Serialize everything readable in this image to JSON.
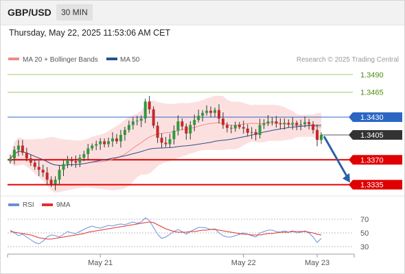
{
  "header": {
    "symbol": "GBP/USD",
    "interval": "30 MIN",
    "timestamp": "Thursday, May 22, 2025 11:53:06 AM CET"
  },
  "colors": {
    "candle_up": "#2f9a3b",
    "candle_down": "#c62828",
    "bollinger_band": "#fcdada",
    "ma20": "#f08a8a",
    "ma50": "#2a4f8a",
    "resistance_line": "#2b66c4",
    "support_line": "#e00000",
    "target_line": "#9bcf6a",
    "target_label": "#4f8a10",
    "current_price_label": "#333333",
    "rsi": "#6a8fd8",
    "rsi_ma": "#e03030",
    "arrow": "#2c5fa8"
  },
  "chart_data": [
    {
      "type": "candlestick",
      "legend": [
        {
          "label": "MA 20 + Bollinger Bands",
          "color": "#f08a8a"
        },
        {
          "label": "MA 50",
          "color": "#2a4f8a"
        }
      ],
      "watermark": "Research © 2025 Trading Central",
      "ylim": [
        1.3325,
        1.351
      ],
      "x_tick_labels": [
        {
          "label": "May 21",
          "index": 22
        },
        {
          "label": "May 22",
          "index": 57
        },
        {
          "label": "May 23",
          "index": 75
        }
      ],
      "levels": [
        {
          "label": "1.3490",
          "value": 1.349,
          "kind": "target",
          "style": "text"
        },
        {
          "label": "1.3465",
          "value": 1.3465,
          "kind": "target",
          "style": "text"
        },
        {
          "label": "1.3430",
          "value": 1.343,
          "kind": "resistance",
          "style": "box"
        },
        {
          "label": "1.3405",
          "value": 1.3405,
          "kind": "current",
          "style": "box"
        },
        {
          "label": "1.3370",
          "value": 1.337,
          "kind": "support",
          "style": "box"
        },
        {
          "label": "1.3335",
          "value": 1.3335,
          "kind": "support",
          "style": "box"
        }
      ],
      "closes": [
        1.3372,
        1.3384,
        1.339,
        1.338,
        1.3372,
        1.3366,
        1.336,
        1.3356,
        1.3352,
        1.3342,
        1.3336,
        1.3342,
        1.3356,
        1.3364,
        1.337,
        1.3368,
        1.3366,
        1.3373,
        1.3378,
        1.3386,
        1.339,
        1.3392,
        1.3396,
        1.3392,
        1.3396,
        1.34,
        1.3396,
        1.3405,
        1.3412,
        1.3419,
        1.3424,
        1.3425,
        1.3428,
        1.3452,
        1.3441,
        1.3418,
        1.3401,
        1.3394,
        1.3392,
        1.3399,
        1.3411,
        1.3424,
        1.3417,
        1.3407,
        1.3419,
        1.3426,
        1.3432,
        1.3436,
        1.3439,
        1.3436,
        1.344,
        1.3428,
        1.3419,
        1.3415,
        1.3414,
        1.3419,
        1.3416,
        1.3414,
        1.3408,
        1.3409,
        1.3405,
        1.3419,
        1.3421,
        1.3424,
        1.3424,
        1.3421,
        1.342,
        1.3422,
        1.342,
        1.3422,
        1.3419,
        1.342,
        1.3423,
        1.342,
        1.3412,
        1.3398,
        1.3405
      ],
      "projection": {
        "from_value": 1.3405,
        "to_value": 1.3335
      }
    },
    {
      "type": "line",
      "legend": [
        {
          "label": "RSI",
          "color": "#6a8fd8"
        },
        {
          "label": "9MA",
          "color": "#e03030"
        }
      ],
      "ylim": [
        22,
        78
      ],
      "y_tick_labels": [
        "70",
        "50",
        "30"
      ],
      "y_ticks": [
        70,
        50,
        30
      ],
      "rsi": [
        54,
        50,
        46,
        48,
        44,
        40,
        36,
        34,
        38,
        44,
        47,
        46,
        44,
        48,
        52,
        50,
        49,
        52,
        55,
        58,
        60,
        58,
        57,
        59,
        61,
        60,
        62,
        63,
        62,
        64,
        66,
        64,
        66,
        72,
        68,
        58,
        48,
        42,
        44,
        48,
        52,
        55,
        52,
        48,
        52,
        55,
        58,
        58,
        57,
        55,
        56,
        50,
        46,
        44,
        44,
        46,
        48,
        50,
        48,
        46,
        44,
        50,
        52,
        54,
        54,
        52,
        51,
        53,
        51,
        53,
        50,
        51,
        53,
        50,
        44,
        36,
        42
      ],
      "rsi_ma": [
        52,
        51,
        50,
        49,
        48,
        47,
        45,
        43,
        42,
        41,
        41,
        42,
        43,
        44,
        45,
        46,
        47,
        48,
        49,
        51,
        52,
        53,
        54,
        55,
        56,
        57,
        58,
        59,
        60,
        61,
        62,
        63,
        64,
        65,
        66,
        65,
        62,
        59,
        56,
        54,
        52,
        51,
        51,
        51,
        52,
        52,
        53,
        54,
        54,
        55,
        55,
        54,
        53,
        52,
        51,
        50,
        49,
        48,
        48,
        47,
        47,
        47,
        48,
        49,
        49,
        50,
        51,
        51,
        51,
        52,
        52,
        52,
        52,
        51,
        50,
        48,
        47
      ]
    }
  ]
}
